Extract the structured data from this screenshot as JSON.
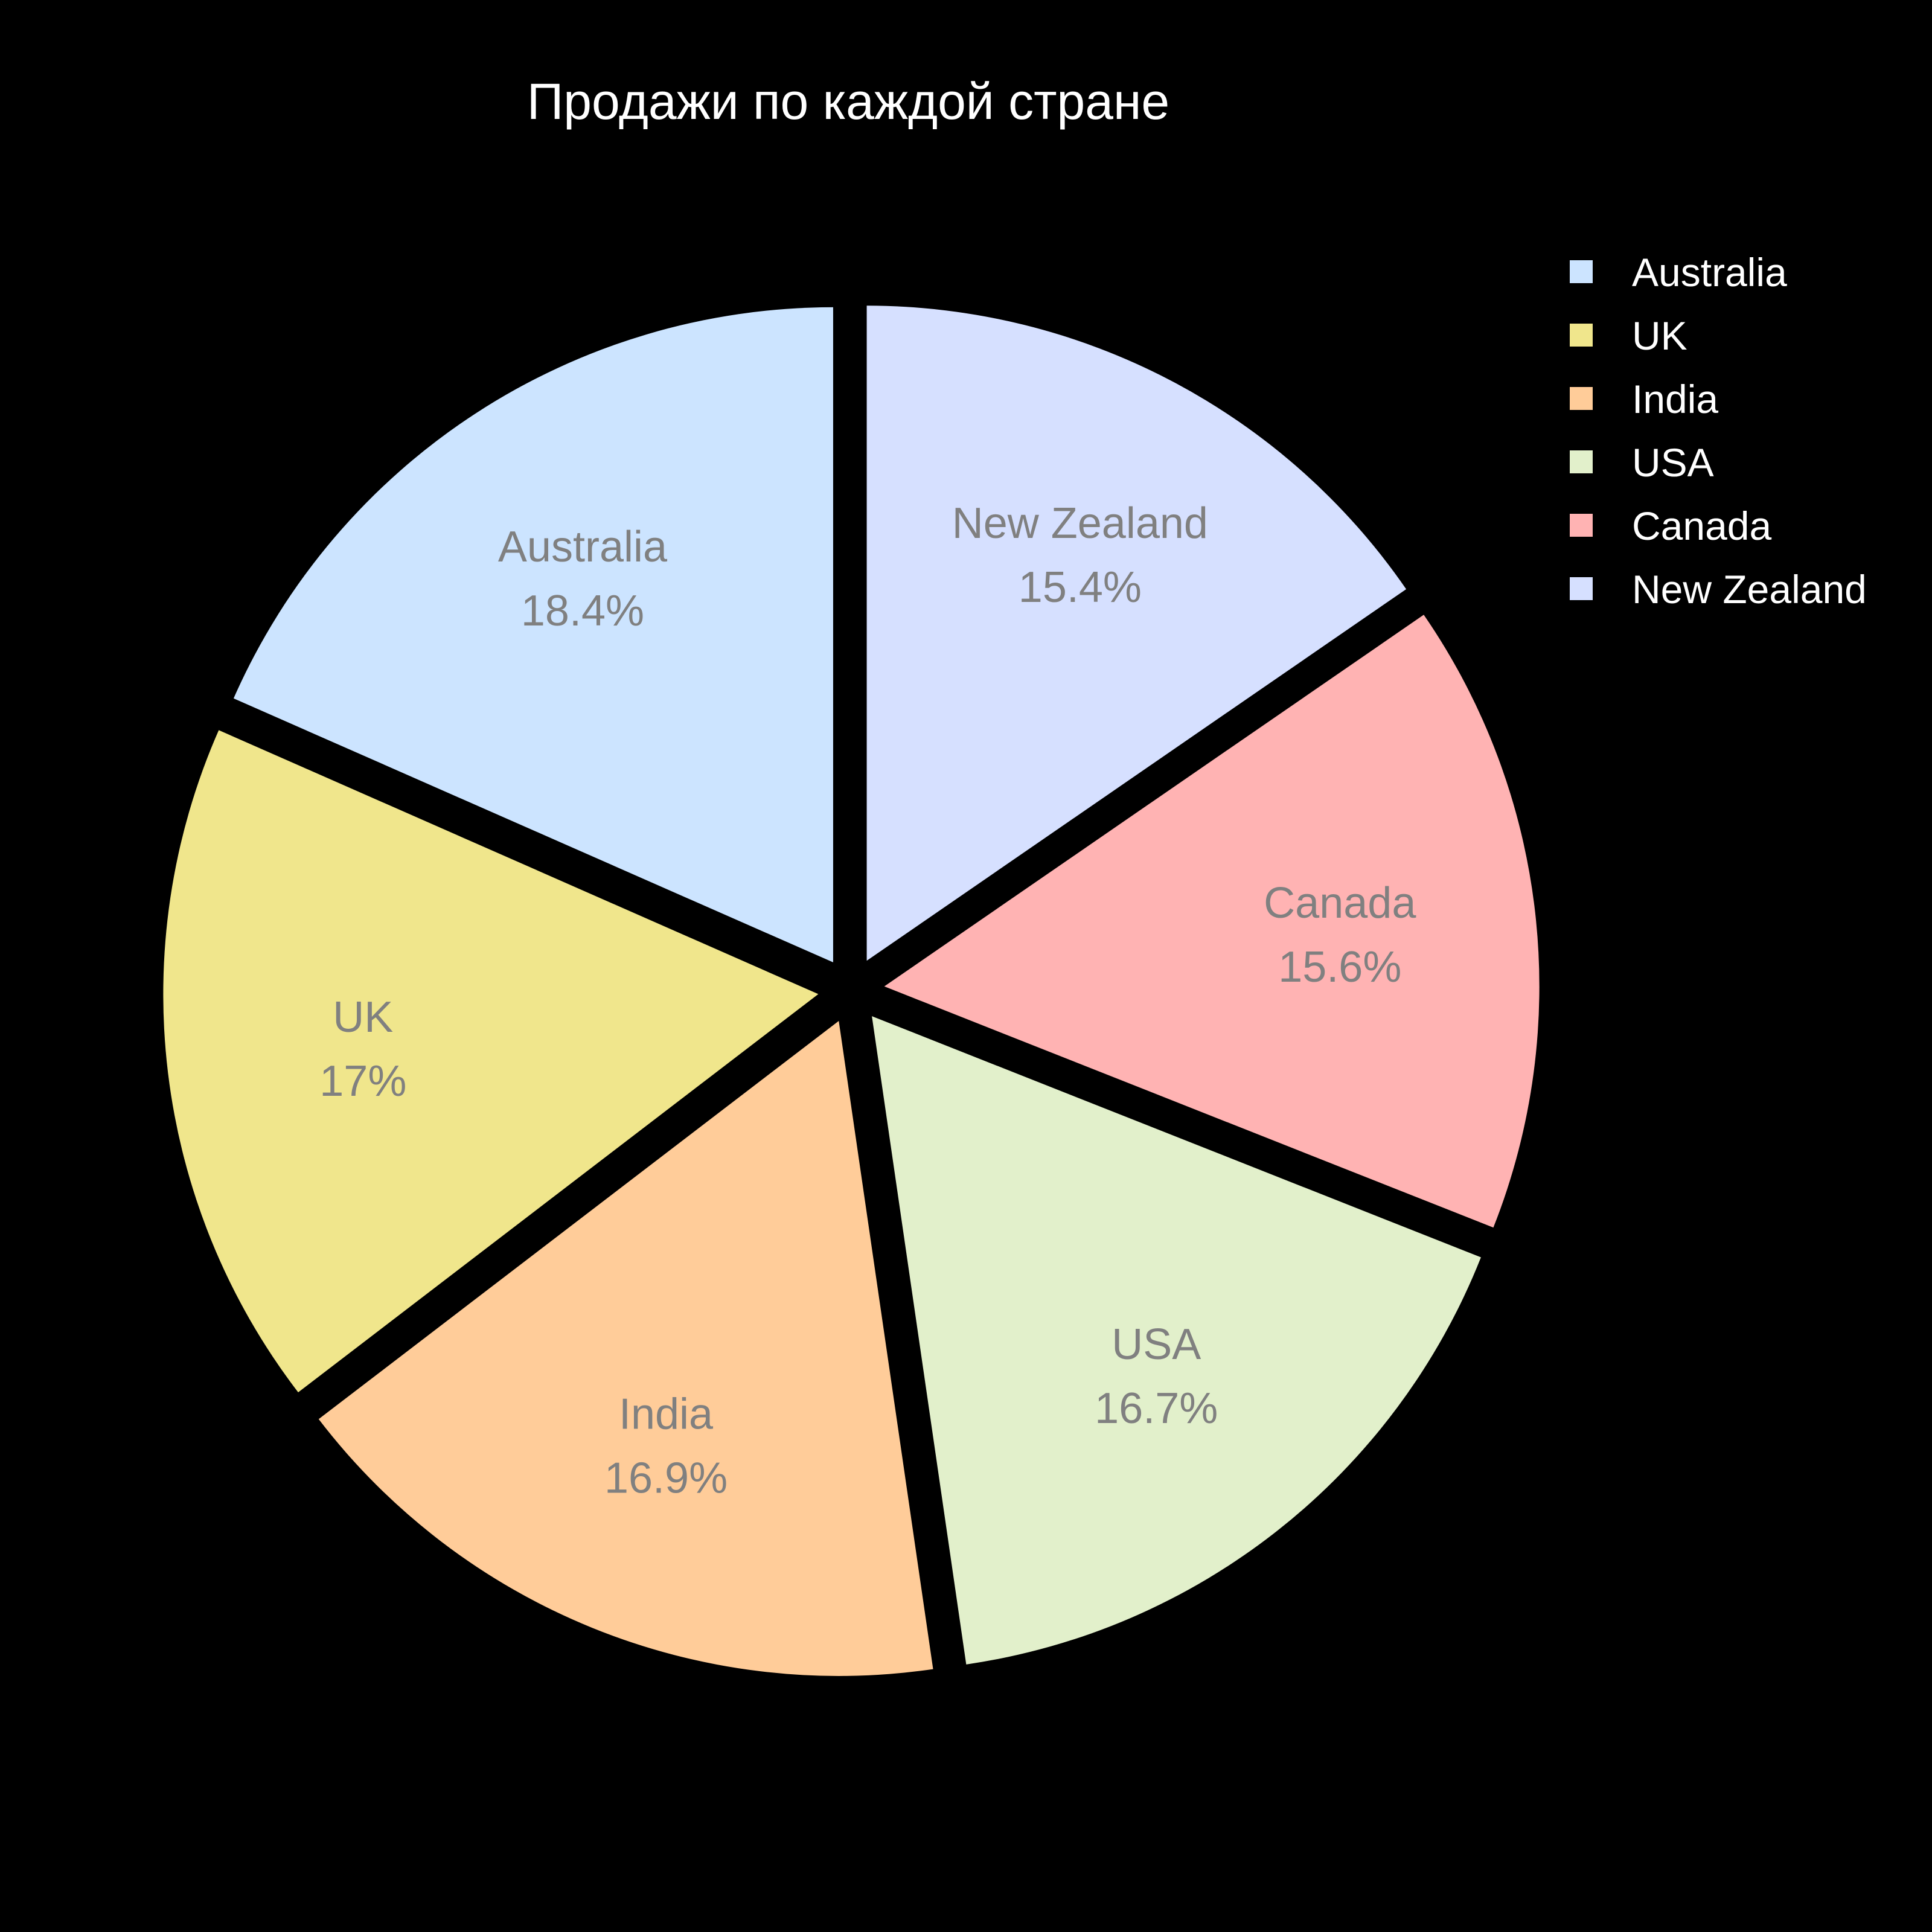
{
  "chart_data": {
    "type": "pie",
    "title": "Продажи по каждой стране",
    "background": "#000000",
    "label_color": "#808080",
    "legend_text_color": "#ffffff",
    "legend_position": "right",
    "exploded": true,
    "slices": [
      {
        "label": "Australia",
        "percent": 18.4,
        "percent_label": "18.4%",
        "color": "#cce4ff"
      },
      {
        "label": "UK",
        "percent": 17.0,
        "percent_label": "17%",
        "color": "#f0e68c"
      },
      {
        "label": "India",
        "percent": 16.9,
        "percent_label": "16.9%",
        "color": "#ffcc99"
      },
      {
        "label": "USA",
        "percent": 16.7,
        "percent_label": "16.7%",
        "color": "#e2f0cb"
      },
      {
        "label": "Canada",
        "percent": 15.6,
        "percent_label": "15.6%",
        "color": "#ffb3b3"
      },
      {
        "label": "New Zealand",
        "percent": 15.4,
        "percent_label": "15.4%",
        "color": "#d6e0ff"
      }
    ],
    "legend_order": [
      "Australia",
      "UK",
      "India",
      "USA",
      "Canada",
      "New Zealand"
    ]
  }
}
